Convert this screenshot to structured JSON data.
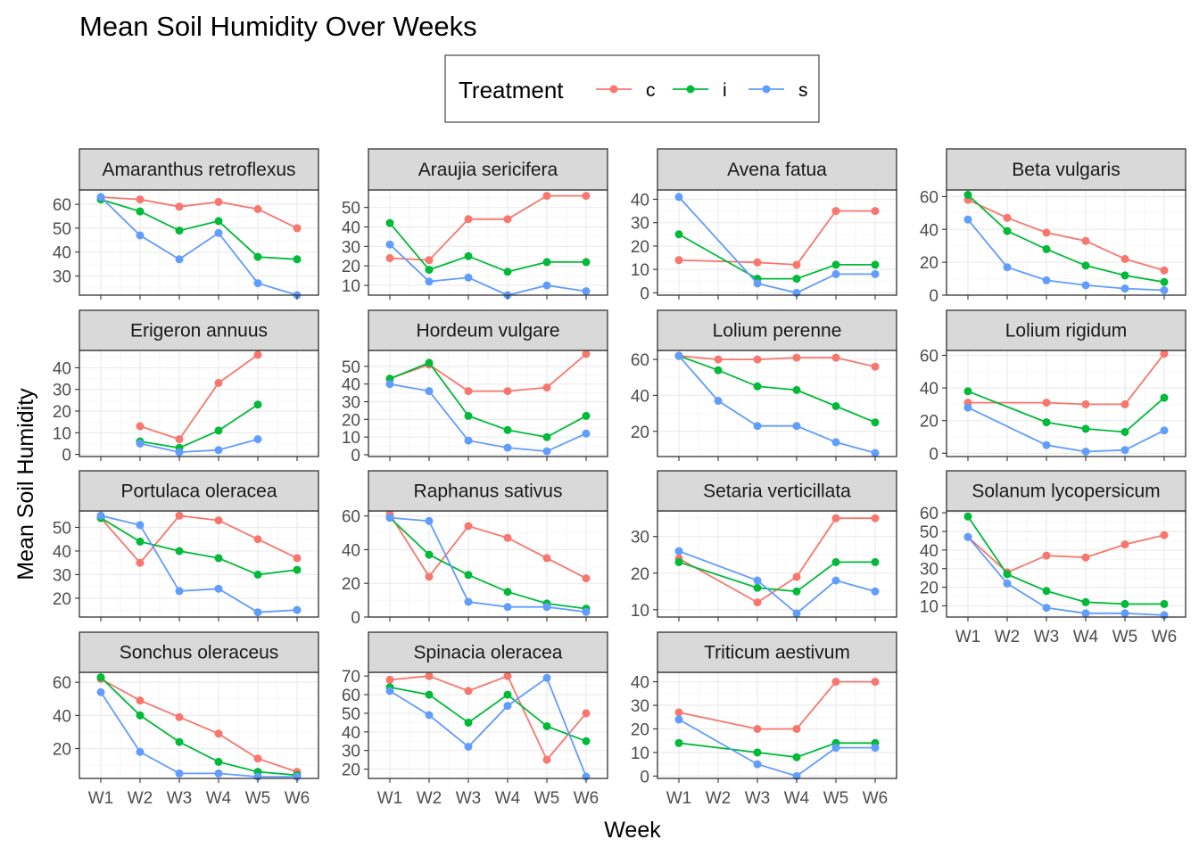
{
  "chart_data": {
    "type": "line",
    "title": "Mean Soil Humidity Over Weeks",
    "xlabel": "Week",
    "ylabel": "Mean Soil Humidity",
    "categories": [
      "W1",
      "W2",
      "W3",
      "W4",
      "W5",
      "W6"
    ],
    "legend": {
      "title": "Treatment",
      "position": "top",
      "entries": [
        {
          "key": "c",
          "label": "c",
          "color": "#F8766D"
        },
        {
          "key": "i",
          "label": "i",
          "color": "#00BA38"
        },
        {
          "key": "s",
          "label": "s",
          "color": "#619CFF"
        }
      ]
    },
    "grid": true,
    "facets": [
      {
        "name": "Amaranthus retroflexus",
        "ylim": [
          22,
          66
        ],
        "yticks": [
          30,
          40,
          50,
          60
        ],
        "series": {
          "c": [
            63,
            62,
            59,
            61,
            58,
            50
          ],
          "i": [
            62,
            57,
            49,
            53,
            38,
            37
          ],
          "s": [
            63,
            47,
            37,
            48,
            27,
            22
          ]
        }
      },
      {
        "name": "Araujia sericifera",
        "ylim": [
          5,
          59
        ],
        "yticks": [
          10,
          20,
          30,
          40,
          50
        ],
        "series": {
          "c": [
            24,
            23,
            44,
            44,
            56,
            56
          ],
          "i": [
            42,
            18,
            25,
            17,
            22,
            22
          ],
          "s": [
            31,
            12,
            14,
            5,
            10,
            7
          ]
        }
      },
      {
        "name": "Avena fatua",
        "ylim": [
          -1,
          44
        ],
        "yticks": [
          0,
          10,
          20,
          30,
          40
        ],
        "series": {
          "c": [
            14,
            null,
            13,
            12,
            35,
            35
          ],
          "i": [
            25,
            null,
            6,
            6,
            12,
            12
          ],
          "s": [
            41,
            null,
            4,
            0,
            8,
            8
          ]
        }
      },
      {
        "name": "Beta vulgaris",
        "ylim": [
          0,
          64
        ],
        "yticks": [
          0,
          20,
          40,
          60
        ],
        "series": {
          "c": [
            58,
            47,
            38,
            33,
            22,
            15
          ],
          "i": [
            61,
            39,
            28,
            18,
            12,
            8
          ],
          "s": [
            46,
            17,
            9,
            6,
            4,
            3
          ]
        }
      },
      {
        "name": "Erigeron annuus",
        "ylim": [
          -1,
          48
        ],
        "yticks": [
          0,
          10,
          20,
          30,
          40
        ],
        "series": {
          "c": [
            null,
            13,
            7,
            33,
            46,
            null
          ],
          "i": [
            null,
            6,
            3,
            11,
            23,
            null
          ],
          "s": [
            null,
            5,
            1,
            2,
            7,
            null
          ]
        }
      },
      {
        "name": "Hordeum vulgare",
        "ylim": [
          -1,
          59
        ],
        "yticks": [
          0,
          10,
          20,
          30,
          40,
          50
        ],
        "series": {
          "c": [
            43,
            51,
            36,
            36,
            38,
            57
          ],
          "i": [
            43,
            52,
            22,
            14,
            10,
            22
          ],
          "s": [
            40,
            36,
            8,
            4,
            2,
            12
          ]
        }
      },
      {
        "name": "Lolium perenne",
        "ylim": [
          6,
          65
        ],
        "yticks": [
          20,
          40,
          60
        ],
        "series": {
          "c": [
            62,
            60,
            60,
            61,
            61,
            56
          ],
          "i": [
            62,
            54,
            45,
            43,
            34,
            25
          ],
          "s": [
            62,
            37,
            23,
            23,
            14,
            8
          ]
        }
      },
      {
        "name": "Lolium rigidum",
        "ylim": [
          -2,
          63
        ],
        "yticks": [
          0,
          20,
          40,
          60
        ],
        "series": {
          "c": [
            31,
            null,
            31,
            30,
            30,
            61
          ],
          "i": [
            38,
            null,
            19,
            15,
            13,
            34
          ],
          "s": [
            28,
            null,
            5,
            1,
            2,
            14
          ]
        }
      },
      {
        "name": "Portulaca oleracea",
        "ylim": [
          12,
          57
        ],
        "yticks": [
          20,
          30,
          40,
          50
        ],
        "series": {
          "c": [
            54,
            35,
            55,
            53,
            45,
            37
          ],
          "i": [
            54,
            44,
            40,
            37,
            30,
            32
          ],
          "s": [
            55,
            51,
            23,
            24,
            14,
            15
          ]
        }
      },
      {
        "name": "Raphanus sativus",
        "ylim": [
          0,
          63
        ],
        "yticks": [
          0,
          20,
          40,
          60
        ],
        "series": {
          "c": [
            61,
            24,
            54,
            47,
            35,
            23
          ],
          "i": [
            59,
            37,
            25,
            15,
            8,
            5
          ],
          "s": [
            59,
            57,
            9,
            6,
            6,
            3
          ]
        }
      },
      {
        "name": "Setaria verticillata",
        "ylim": [
          8,
          37
        ],
        "yticks": [
          10,
          20,
          30
        ],
        "series": {
          "c": [
            24,
            null,
            12,
            19,
            35,
            35
          ],
          "i": [
            23,
            null,
            16,
            15,
            23,
            23
          ],
          "s": [
            26,
            null,
            18,
            9,
            18,
            15
          ]
        }
      },
      {
        "name": "Solanum lycopersicum",
        "ylim": [
          4,
          61
        ],
        "yticks": [
          10,
          20,
          30,
          40,
          50,
          60
        ],
        "series": {
          "c": [
            47,
            28,
            37,
            36,
            43,
            48
          ],
          "i": [
            58,
            27,
            18,
            12,
            11,
            11
          ],
          "s": [
            47,
            22,
            9,
            6,
            6,
            5
          ]
        }
      },
      {
        "name": "Sonchus oleraceus",
        "ylim": [
          2,
          66
        ],
        "yticks": [
          20,
          40,
          60
        ],
        "series": {
          "c": [
            62,
            49,
            39,
            29,
            14,
            6
          ],
          "i": [
            63,
            40,
            24,
            12,
            6,
            4
          ],
          "s": [
            54,
            18,
            5,
            5,
            3,
            3
          ]
        }
      },
      {
        "name": "Spinacia oleracea",
        "ylim": [
          15,
          72
        ],
        "yticks": [
          20,
          30,
          40,
          50,
          60,
          70
        ],
        "series": {
          "c": [
            68,
            70,
            62,
            70,
            25,
            50
          ],
          "i": [
            64,
            60,
            45,
            60,
            43,
            35
          ],
          "s": [
            62,
            49,
            32,
            54,
            69,
            16
          ]
        }
      },
      {
        "name": "Triticum aestivum",
        "ylim": [
          -1,
          44
        ],
        "yticks": [
          0,
          10,
          20,
          30,
          40
        ],
        "series": {
          "c": [
            27,
            null,
            20,
            20,
            40,
            40
          ],
          "i": [
            14,
            null,
            10,
            8,
            14,
            14
          ],
          "s": [
            24,
            null,
            5,
            0,
            12,
            12
          ]
        }
      }
    ]
  }
}
